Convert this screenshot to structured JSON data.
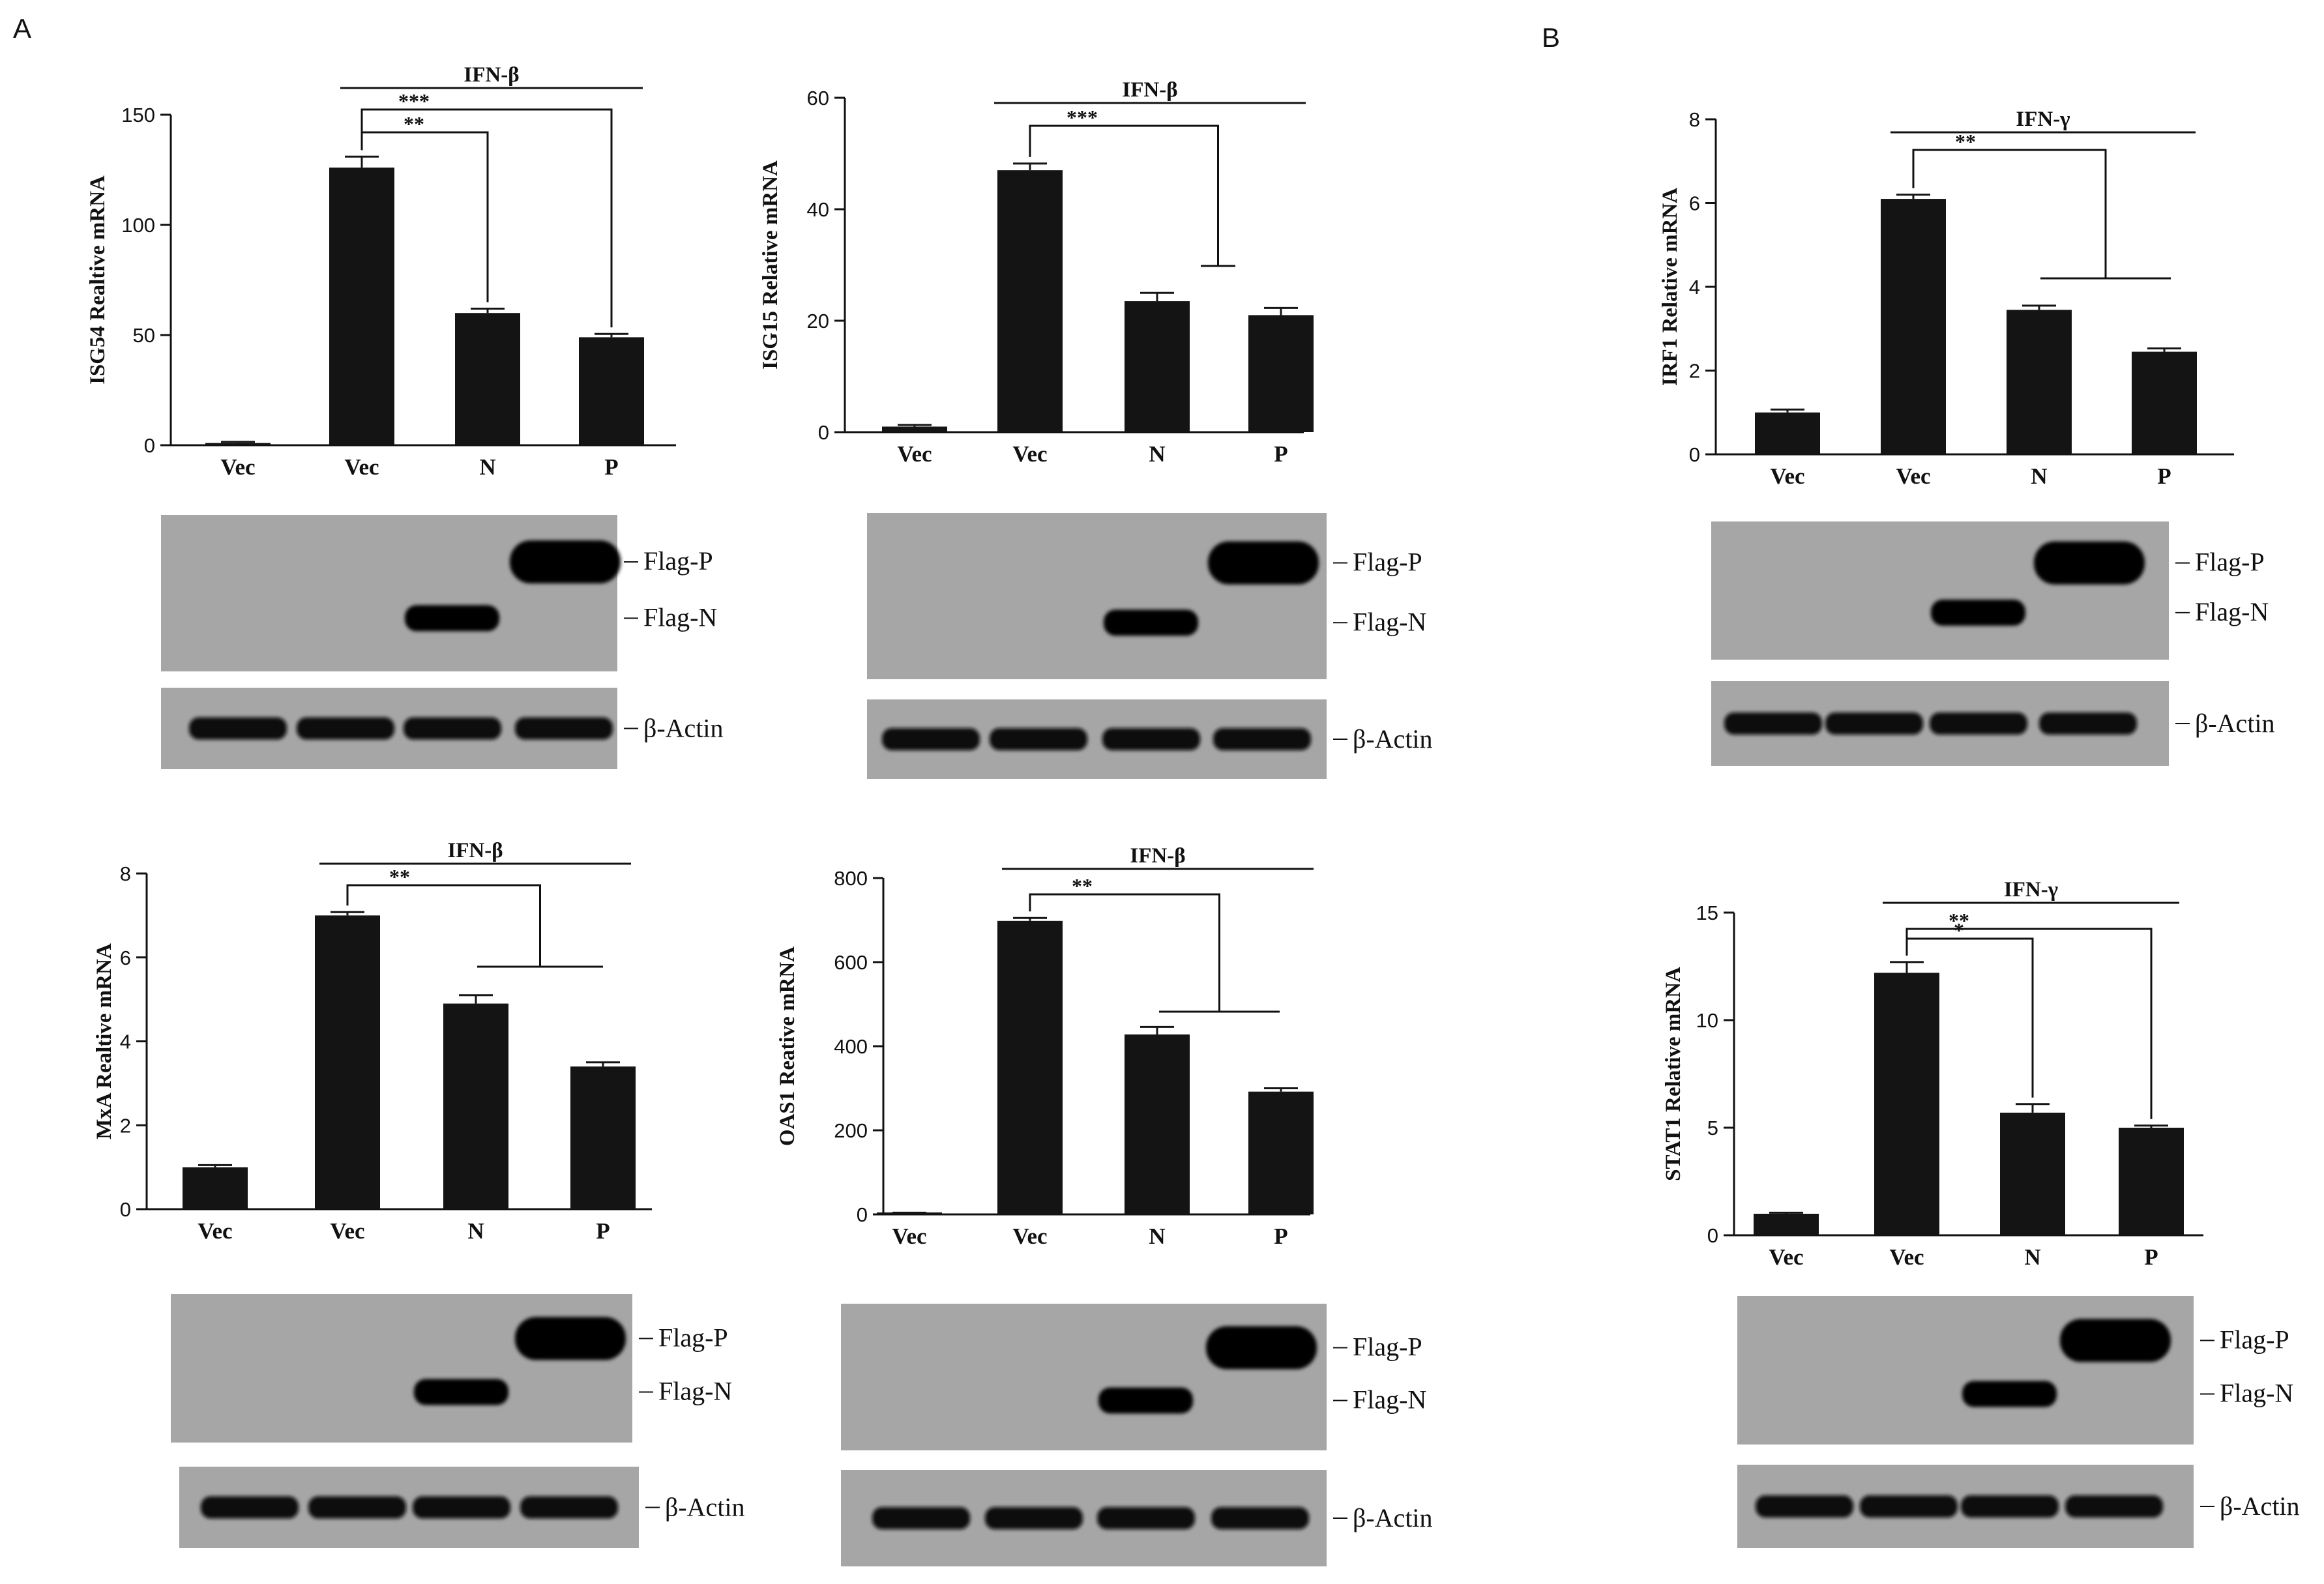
{
  "panel_letters": [
    "A",
    "B"
  ],
  "chart_data": [
    {
      "type": "bar",
      "panel": "A",
      "ylabel": "ISG54 Realtive mRNA",
      "categories": [
        "Vec",
        "Vec",
        "N",
        "P"
      ],
      "values": [
        1,
        126,
        60,
        49
      ],
      "errors": [
        0.5,
        5,
        2,
        1.5
      ],
      "ylim": [
        0,
        150
      ],
      "yticks": [
        0,
        50,
        100,
        150
      ],
      "treatment": "IFN-β",
      "significance": [
        {
          "label": "**",
          "from": 1,
          "to": [
            2
          ]
        },
        {
          "label": "***",
          "from": 1,
          "to": [
            3
          ]
        }
      ],
      "blot": {
        "bands": [
          "Flag-P",
          "Flag-N"
        ],
        "loading": "β-Actin"
      }
    },
    {
      "type": "bar",
      "panel": "A",
      "ylabel": "ISG15 Relative mRNA",
      "categories": [
        "Vec",
        "Vec",
        "N",
        "P"
      ],
      "values": [
        1,
        47,
        23.5,
        21
      ],
      "errors": [
        0.3,
        1.2,
        1.5,
        1.3
      ],
      "ylim": [
        0,
        60
      ],
      "yticks": [
        0,
        20,
        40,
        60
      ],
      "treatment": "IFN-β",
      "significance": [
        {
          "label": "***",
          "from": 1,
          "to": [
            2,
            3
          ]
        }
      ],
      "blot": {
        "bands": [
          "Flag-P",
          "Flag-N"
        ],
        "loading": "β-Actin"
      }
    },
    {
      "type": "bar",
      "panel": "B",
      "ylabel": "IRF1 Relative mRNA",
      "categories": [
        "Vec",
        "Vec",
        "N",
        "P"
      ],
      "values": [
        1,
        6.1,
        3.45,
        2.45
      ],
      "errors": [
        0.07,
        0.1,
        0.1,
        0.08
      ],
      "ylim": [
        0,
        8
      ],
      "yticks": [
        0,
        2,
        4,
        6,
        8
      ],
      "treatment": "IFN-γ",
      "significance": [
        {
          "label": "**",
          "from": 1,
          "to": [
            2,
            3
          ]
        }
      ],
      "blot": {
        "bands": [
          "Flag-P",
          "Flag-N"
        ],
        "loading": "β-Actin"
      }
    },
    {
      "type": "bar",
      "panel": "A",
      "ylabel": "MxA Realtive mRNA",
      "categories": [
        "Vec",
        "Vec",
        "N",
        "P"
      ],
      "values": [
        1,
        7,
        4.9,
        3.4
      ],
      "errors": [
        0.05,
        0.08,
        0.2,
        0.1
      ],
      "ylim": [
        0,
        8
      ],
      "yticks": [
        0,
        2,
        4,
        6,
        8
      ],
      "treatment": "IFN-β",
      "significance": [
        {
          "label": "**",
          "from": 1,
          "to": [
            2,
            3
          ]
        }
      ],
      "blot": {
        "bands": [
          "Flag-P",
          "Flag-N"
        ],
        "loading": "β-Actin"
      }
    },
    {
      "type": "bar",
      "panel": "A",
      "ylabel": "OAS1 Reative mRNA",
      "categories": [
        "Vec",
        "Vec",
        "N",
        "P"
      ],
      "values": [
        3,
        698,
        428,
        292
      ],
      "errors": [
        1,
        7,
        18,
        8
      ],
      "ylim": [
        0,
        800
      ],
      "yticks": [
        0,
        200,
        400,
        600,
        800
      ],
      "treatment": "IFN-β",
      "significance": [
        {
          "label": "**",
          "from": 1,
          "to": [
            2,
            3
          ]
        }
      ],
      "blot": {
        "bands": [
          "Flag-P",
          "Flag-N"
        ],
        "loading": "β-Actin"
      }
    },
    {
      "type": "bar",
      "panel": "B",
      "ylabel": "STAT1  Relative mRNA",
      "categories": [
        "Vec",
        "Vec",
        "N",
        "P"
      ],
      "values": [
        1,
        12.2,
        5.7,
        5
      ],
      "errors": [
        0.05,
        0.5,
        0.4,
        0.1
      ],
      "ylim": [
        0,
        15
      ],
      "yticks": [
        0,
        5,
        10,
        15
      ],
      "treatment": "IFN-γ",
      "significance": [
        {
          "label": "*",
          "from": 1,
          "to": [
            2
          ]
        },
        {
          "label": "**",
          "from": 1,
          "to": [
            3
          ]
        }
      ],
      "blot": {
        "bands": [
          "Flag-P",
          "Flag-N"
        ],
        "loading": "β-Actin"
      }
    }
  ]
}
